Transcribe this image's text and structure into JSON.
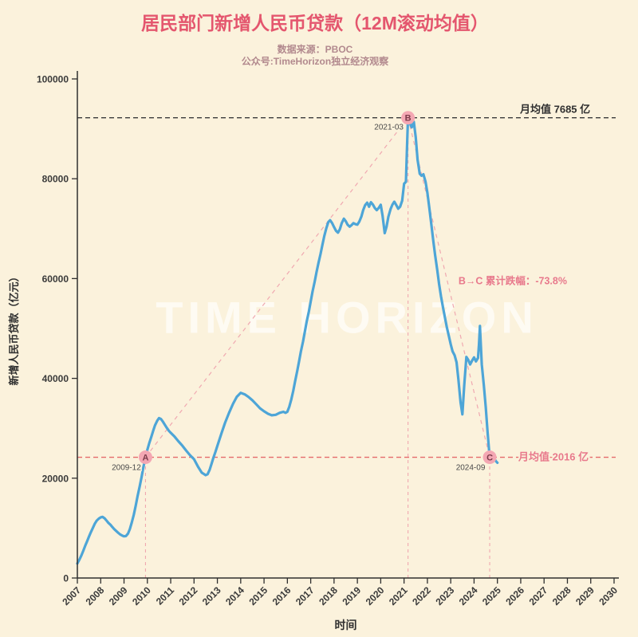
{
  "title": "居民部门新增人民币贷款（12M滚动均值）",
  "subtitle1": "数据来源：PBOC",
  "subtitle2": "公众号:TimeHorizon独立经济观察",
  "watermark": "TIME HORIZON",
  "colors": {
    "background": "#fbf2dc",
    "title": "#e4566e",
    "subtitle": "#b2898e",
    "line": "#4da5d7",
    "guide_pink": "#f0a8b0",
    "ref_red": "#e56a6a",
    "ref_black": "#3a3a3a",
    "marker_fill": "#f4a7b3",
    "marker_text": "#7c3b4a",
    "axis": "#2f2f2f",
    "tick_text": "#3a3a3a",
    "annotation": "#e8798c",
    "date_text": "#4a4a4a"
  },
  "chart_data": {
    "type": "line",
    "title": "居民部门新增人民币贷款（12M滚动均值）",
    "xlabel": "时间",
    "ylabel": "新增人民币贷款（亿元）",
    "xlim": [
      2007,
      2030
    ],
    "ylim": [
      0,
      100000
    ],
    "x_ticks": [
      2007,
      2008,
      2009,
      2010,
      2011,
      2012,
      2013,
      2014,
      2015,
      2016,
      2017,
      2018,
      2019,
      2020,
      2021,
      2022,
      2023,
      2024,
      2025,
      2026,
      2027,
      2028,
      2029,
      2030
    ],
    "x_tick_rotation": 45,
    "y_ticks": [
      0,
      20000,
      40000,
      60000,
      80000,
      100000
    ],
    "grid": false,
    "legend": "none",
    "series": [
      {
        "name": "12M滚动均值",
        "points": [
          [
            2007.0,
            2900
          ],
          [
            2007.08,
            3600
          ],
          [
            2007.17,
            4500
          ],
          [
            2007.25,
            5400
          ],
          [
            2007.33,
            6400
          ],
          [
            2007.42,
            7400
          ],
          [
            2007.5,
            8300
          ],
          [
            2007.58,
            9200
          ],
          [
            2007.67,
            10100
          ],
          [
            2007.75,
            10900
          ],
          [
            2007.83,
            11500
          ],
          [
            2007.92,
            11900
          ],
          [
            2008.0,
            12150
          ],
          [
            2008.08,
            12250
          ],
          [
            2008.17,
            11950
          ],
          [
            2008.25,
            11500
          ],
          [
            2008.33,
            11050
          ],
          [
            2008.42,
            10650
          ],
          [
            2008.5,
            10200
          ],
          [
            2008.58,
            9800
          ],
          [
            2008.67,
            9400
          ],
          [
            2008.75,
            9050
          ],
          [
            2008.83,
            8750
          ],
          [
            2008.92,
            8500
          ],
          [
            2009.0,
            8350
          ],
          [
            2009.08,
            8400
          ],
          [
            2009.17,
            8900
          ],
          [
            2009.25,
            9800
          ],
          [
            2009.33,
            11100
          ],
          [
            2009.42,
            12700
          ],
          [
            2009.5,
            14500
          ],
          [
            2009.58,
            16400
          ],
          [
            2009.67,
            18300
          ],
          [
            2009.75,
            20200
          ],
          [
            2009.83,
            22200
          ],
          [
            2009.92,
            24192
          ],
          [
            2010.0,
            25700
          ],
          [
            2010.08,
            27000
          ],
          [
            2010.17,
            28300
          ],
          [
            2010.25,
            29500
          ],
          [
            2010.33,
            30600
          ],
          [
            2010.42,
            31500
          ],
          [
            2010.5,
            32050
          ],
          [
            2010.58,
            31850
          ],
          [
            2010.67,
            31300
          ],
          [
            2010.75,
            30700
          ],
          [
            2010.83,
            30100
          ],
          [
            2010.92,
            29500
          ],
          [
            2011.0,
            29100
          ],
          [
            2011.17,
            28300
          ],
          [
            2011.33,
            27400
          ],
          [
            2011.5,
            26500
          ],
          [
            2011.67,
            25500
          ],
          [
            2011.83,
            24600
          ],
          [
            2012.0,
            23800
          ],
          [
            2012.17,
            22300
          ],
          [
            2012.33,
            21100
          ],
          [
            2012.5,
            20600
          ],
          [
            2012.58,
            20800
          ],
          [
            2012.67,
            21700
          ],
          [
            2012.75,
            22900
          ],
          [
            2012.83,
            24100
          ],
          [
            2012.92,
            25300
          ],
          [
            2013.0,
            26500
          ],
          [
            2013.17,
            28900
          ],
          [
            2013.33,
            31100
          ],
          [
            2013.5,
            33100
          ],
          [
            2013.67,
            34900
          ],
          [
            2013.83,
            36300
          ],
          [
            2014.0,
            37100
          ],
          [
            2014.17,
            36800
          ],
          [
            2014.33,
            36300
          ],
          [
            2014.5,
            35600
          ],
          [
            2014.67,
            34800
          ],
          [
            2014.83,
            34000
          ],
          [
            2015.0,
            33400
          ],
          [
            2015.17,
            32900
          ],
          [
            2015.33,
            32600
          ],
          [
            2015.5,
            32700
          ],
          [
            2015.67,
            33100
          ],
          [
            2015.83,
            33300
          ],
          [
            2015.92,
            33100
          ],
          [
            2016.0,
            33300
          ],
          [
            2016.08,
            34300
          ],
          [
            2016.17,
            35800
          ],
          [
            2016.25,
            37500
          ],
          [
            2016.33,
            39400
          ],
          [
            2016.42,
            41400
          ],
          [
            2016.5,
            43400
          ],
          [
            2016.58,
            45400
          ],
          [
            2016.67,
            47400
          ],
          [
            2016.75,
            49400
          ],
          [
            2016.83,
            51400
          ],
          [
            2016.92,
            53400
          ],
          [
            2017.0,
            55400
          ],
          [
            2017.08,
            57400
          ],
          [
            2017.17,
            59400
          ],
          [
            2017.25,
            61300
          ],
          [
            2017.33,
            63100
          ],
          [
            2017.42,
            64900
          ],
          [
            2017.5,
            66700
          ],
          [
            2017.58,
            68500
          ],
          [
            2017.67,
            70100
          ],
          [
            2017.75,
            71300
          ],
          [
            2017.83,
            71700
          ],
          [
            2017.92,
            71100
          ],
          [
            2018.0,
            70300
          ],
          [
            2018.08,
            69600
          ],
          [
            2018.17,
            69200
          ],
          [
            2018.25,
            69900
          ],
          [
            2018.33,
            71100
          ],
          [
            2018.42,
            72000
          ],
          [
            2018.5,
            71500
          ],
          [
            2018.58,
            70800
          ],
          [
            2018.67,
            70400
          ],
          [
            2018.75,
            70700
          ],
          [
            2018.83,
            71100
          ],
          [
            2018.92,
            70900
          ],
          [
            2019.0,
            70800
          ],
          [
            2019.08,
            71400
          ],
          [
            2019.17,
            72400
          ],
          [
            2019.25,
            73700
          ],
          [
            2019.33,
            74700
          ],
          [
            2019.42,
            75200
          ],
          [
            2019.5,
            74400
          ],
          [
            2019.58,
            75300
          ],
          [
            2019.67,
            74800
          ],
          [
            2019.75,
            74100
          ],
          [
            2019.83,
            73700
          ],
          [
            2019.92,
            74200
          ],
          [
            2020.0,
            74800
          ],
          [
            2020.08,
            72600
          ],
          [
            2020.17,
            69100
          ],
          [
            2020.25,
            70400
          ],
          [
            2020.33,
            72400
          ],
          [
            2020.42,
            73900
          ],
          [
            2020.5,
            74800
          ],
          [
            2020.58,
            75400
          ],
          [
            2020.67,
            74700
          ],
          [
            2020.75,
            74000
          ],
          [
            2020.83,
            74400
          ],
          [
            2020.92,
            75600
          ],
          [
            2021.0,
            79000
          ],
          [
            2021.08,
            79400
          ],
          [
            2021.13,
            87000
          ],
          [
            2021.17,
            92220
          ],
          [
            2021.25,
            91100
          ],
          [
            2021.33,
            90300
          ],
          [
            2021.42,
            91400
          ],
          [
            2021.5,
            88300
          ],
          [
            2021.58,
            83800
          ],
          [
            2021.67,
            81000
          ],
          [
            2021.75,
            80600
          ],
          [
            2021.83,
            80900
          ],
          [
            2021.92,
            79400
          ],
          [
            2022.0,
            77200
          ],
          [
            2022.08,
            74200
          ],
          [
            2022.17,
            70800
          ],
          [
            2022.25,
            67700
          ],
          [
            2022.33,
            64700
          ],
          [
            2022.42,
            61800
          ],
          [
            2022.5,
            59000
          ],
          [
            2022.58,
            56500
          ],
          [
            2022.67,
            54200
          ],
          [
            2022.75,
            52200
          ],
          [
            2022.83,
            50300
          ],
          [
            2022.92,
            48500
          ],
          [
            2023.0,
            46800
          ],
          [
            2023.08,
            45400
          ],
          [
            2023.17,
            44600
          ],
          [
            2023.25,
            43200
          ],
          [
            2023.33,
            39800
          ],
          [
            2023.42,
            35200
          ],
          [
            2023.5,
            32800
          ],
          [
            2023.58,
            38600
          ],
          [
            2023.67,
            44300
          ],
          [
            2023.75,
            43700
          ],
          [
            2023.83,
            42800
          ],
          [
            2023.92,
            43600
          ],
          [
            2024.0,
            44200
          ],
          [
            2024.08,
            43400
          ],
          [
            2024.17,
            44100
          ],
          [
            2024.21,
            46800
          ],
          [
            2024.25,
            50500
          ],
          [
            2024.29,
            46800
          ],
          [
            2024.33,
            42800
          ],
          [
            2024.42,
            38600
          ],
          [
            2024.5,
            34200
          ],
          [
            2024.58,
            29200
          ],
          [
            2024.67,
            24192
          ],
          [
            2024.75,
            23700
          ],
          [
            2024.83,
            24400
          ],
          [
            2024.92,
            23500
          ],
          [
            2025.0,
            23100
          ]
        ]
      }
    ],
    "reference_lines": [
      {
        "id": "b-level",
        "value": 92220,
        "label": "月均值 7685 亿",
        "color": "#3a3a3a",
        "label_color": "#2f2f2f"
      },
      {
        "id": "c-level",
        "value": 24192,
        "label": "月均值 2016 亿",
        "color": "#e56a6a",
        "label_color": "#e8798c"
      }
    ],
    "markers": [
      {
        "letter": "A",
        "date": "2009-12",
        "x": 2009.92,
        "y": 24192
      },
      {
        "letter": "B",
        "date": "2021-03",
        "x": 2021.17,
        "y": 92220
      },
      {
        "letter": "C",
        "date": "2024-09",
        "x": 2024.67,
        "y": 24192
      }
    ],
    "trend_lines": [
      [
        "A",
        "B"
      ],
      [
        "B",
        "C"
      ]
    ],
    "annotation": {
      "text": "B→C 累计跌幅：-73.8%",
      "x": 2023.33,
      "y": 59500
    }
  }
}
